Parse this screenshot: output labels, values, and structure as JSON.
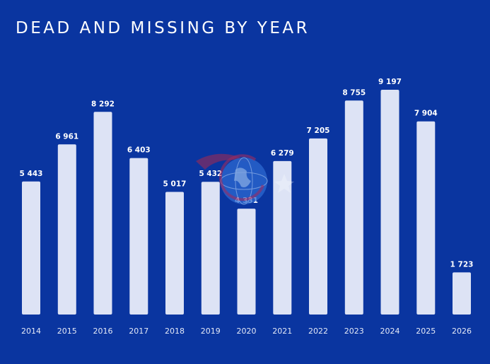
{
  "colors": {
    "background": "#0a35a0",
    "bar": "#dde3f5",
    "text": "#ffffff"
  },
  "chart_data": {
    "type": "bar",
    "title": "DEAD AND MISSING BY YEAR",
    "xlabel": "",
    "ylabel": "",
    "ylim": [
      0,
      9500
    ],
    "grid": false,
    "categories": [
      "2014",
      "2015",
      "2016",
      "2017",
      "2018",
      "2019",
      "2020",
      "2021",
      "2022",
      "2023",
      "2024",
      "2025",
      "2026"
    ],
    "values": [
      5443,
      6961,
      8292,
      6403,
      5017,
      5432,
      4331,
      6279,
      7205,
      8755,
      9197,
      7904,
      1723
    ],
    "value_labels": [
      "5 443",
      "6 961",
      "8 292",
      "6 403",
      "5 017",
      "5 432",
      "4 331",
      "6 279",
      "7 205",
      "8 755",
      "9 197",
      "7 904",
      "1 723"
    ]
  }
}
